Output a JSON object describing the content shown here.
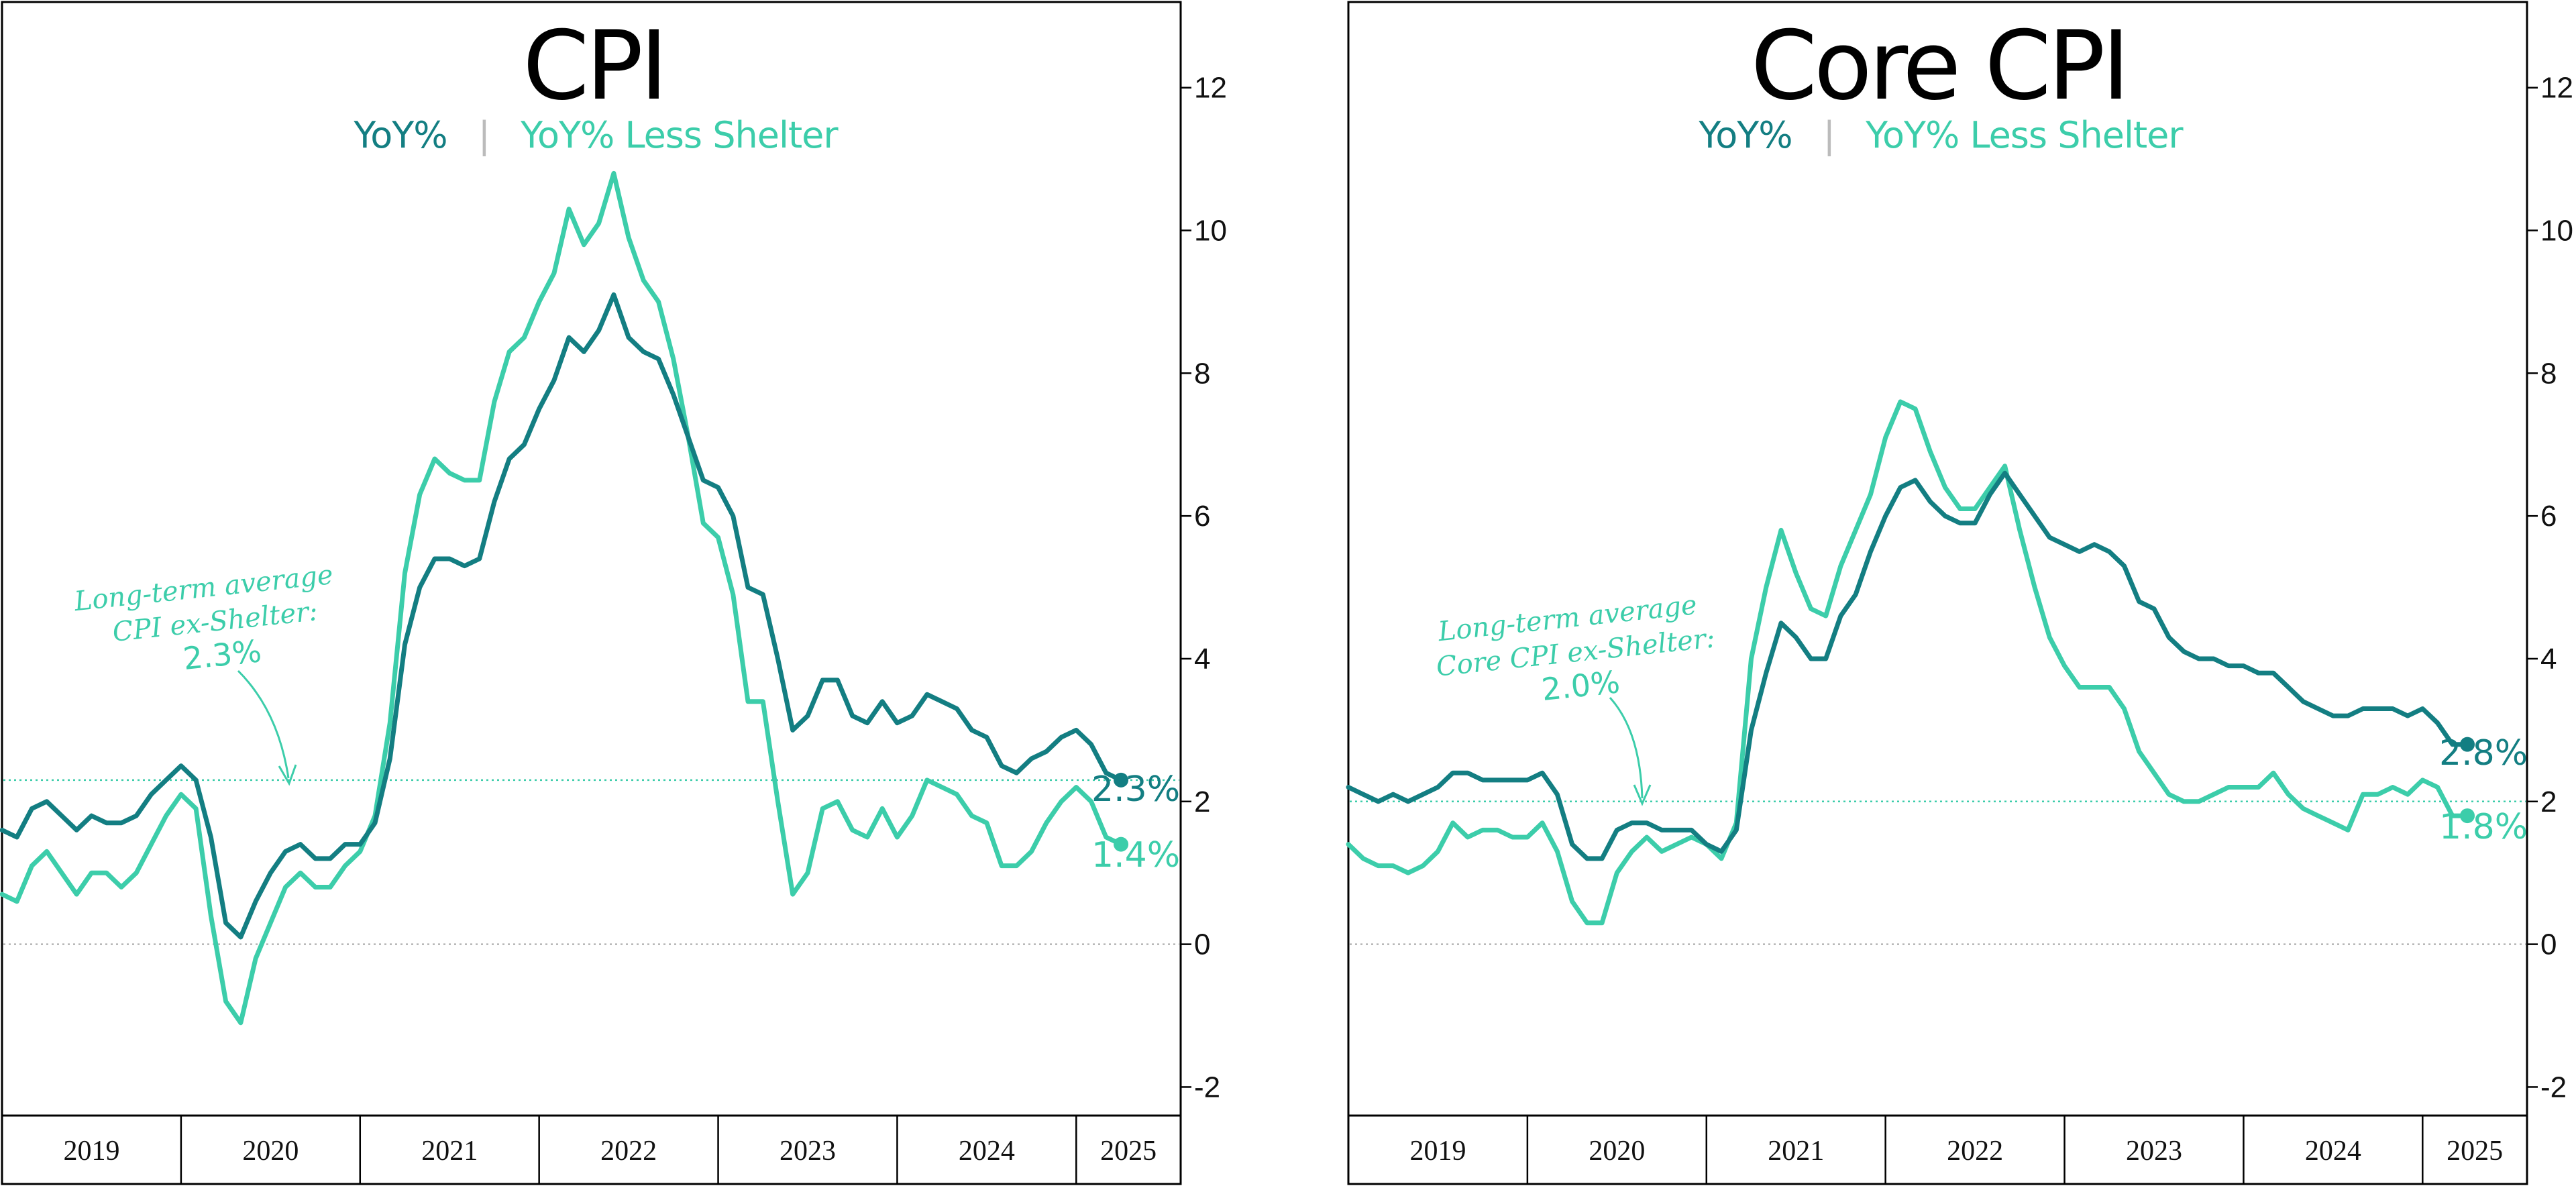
{
  "colors": {
    "yoy": "#137e82",
    "less_shelter": "#3ccdaa",
    "separator": "#bbbbbb"
  },
  "chart_data": [
    {
      "type": "line",
      "title": "CPI",
      "subtitle": {
        "series1": "YoY%",
        "separator": "|",
        "series2": "YoY% Less Shelter"
      },
      "x_axis": {
        "labels": [
          "2019",
          "2020",
          "2021",
          "2022",
          "2023",
          "2024",
          "2025"
        ],
        "range": [
          "2019-01",
          "2025-08"
        ]
      },
      "y_axis": {
        "side": "right",
        "ylim": [
          -2.4,
          13.2
        ],
        "ticks": [
          "-2",
          "0",
          "2",
          "4",
          "6",
          "8",
          "10",
          "12"
        ]
      },
      "reference_lines": [
        {
          "y": 0,
          "style": "dotted grey"
        },
        {
          "y": 2.3,
          "style": "dotted teal"
        }
      ],
      "annotation": {
        "lines": [
          "Long-term average",
          "CPI ex-Shelter:"
        ],
        "value": "2.3%"
      },
      "end_labels": {
        "series1": "2.3%",
        "series2": "1.4%"
      },
      "series": [
        {
          "name": "YoY%",
          "start": "2019-01",
          "values": [
            1.6,
            1.5,
            1.9,
            2.0,
            1.8,
            1.6,
            1.8,
            1.7,
            1.7,
            1.8,
            2.1,
            2.3,
            2.5,
            2.3,
            1.5,
            0.3,
            0.1,
            0.6,
            1.0,
            1.3,
            1.4,
            1.2,
            1.2,
            1.4,
            1.4,
            1.7,
            2.6,
            4.2,
            5.0,
            5.4,
            5.4,
            5.3,
            5.4,
            6.2,
            6.8,
            7.0,
            7.5,
            7.9,
            8.5,
            8.3,
            8.6,
            9.1,
            8.5,
            8.3,
            8.2,
            7.7,
            7.1,
            6.5,
            6.4,
            6.0,
            5.0,
            4.9,
            4.0,
            3.0,
            3.2,
            3.7,
            3.7,
            3.2,
            3.1,
            3.4,
            3.1,
            3.2,
            3.5,
            3.4,
            3.3,
            3.0,
            2.9,
            2.5,
            2.4,
            2.6,
            2.7,
            2.9,
            3.0,
            2.8,
            2.4,
            2.3
          ]
        },
        {
          "name": "YoY% Less Shelter",
          "start": "2019-01",
          "values": [
            0.7,
            0.6,
            1.1,
            1.3,
            1.0,
            0.7,
            1.0,
            1.0,
            0.8,
            1.0,
            1.4,
            1.8,
            2.1,
            1.9,
            0.4,
            -0.8,
            -1.1,
            -0.2,
            0.3,
            0.8,
            1.0,
            0.8,
            0.8,
            1.1,
            1.3,
            1.8,
            3.1,
            5.2,
            6.3,
            6.8,
            6.6,
            6.5,
            6.5,
            7.6,
            8.3,
            8.5,
            9.0,
            9.4,
            10.3,
            9.8,
            10.1,
            10.8,
            9.9,
            9.3,
            9.0,
            8.2,
            7.1,
            5.9,
            5.7,
            4.9,
            3.4,
            3.4,
            2.0,
            0.7,
            1.0,
            1.9,
            2.0,
            1.6,
            1.5,
            1.9,
            1.5,
            1.8,
            2.3,
            2.2,
            2.1,
            1.8,
            1.7,
            1.1,
            1.1,
            1.3,
            1.7,
            2.0,
            2.2,
            2.0,
            1.5,
            1.4
          ]
        }
      ]
    },
    {
      "type": "line",
      "title": "Core CPI",
      "subtitle": {
        "series1": "YoY%",
        "separator": "|",
        "series2": "YoY% Less Shelter"
      },
      "x_axis": {
        "labels": [
          "2019",
          "2020",
          "2021",
          "2022",
          "2023",
          "2024",
          "2025"
        ],
        "range": [
          "2019-01",
          "2025-08"
        ]
      },
      "y_axis": {
        "side": "right",
        "ylim": [
          -2.4,
          13.2
        ],
        "ticks": [
          "-2",
          "0",
          "2",
          "4",
          "6",
          "8",
          "10",
          "12"
        ]
      },
      "reference_lines": [
        {
          "y": 0,
          "style": "dotted grey"
        },
        {
          "y": 2.0,
          "style": "dotted teal"
        }
      ],
      "annotation": {
        "lines": [
          "Long-term average",
          "Core CPI ex-Shelter:"
        ],
        "value": "2.0%"
      },
      "end_labels": {
        "series1": "2.8%",
        "series2": "1.8%"
      },
      "series": [
        {
          "name": "YoY%",
          "start": "2019-01",
          "values": [
            2.2,
            2.1,
            2.0,
            2.1,
            2.0,
            2.1,
            2.2,
            2.4,
            2.4,
            2.3,
            2.3,
            2.3,
            2.3,
            2.4,
            2.1,
            1.4,
            1.2,
            1.2,
            1.6,
            1.7,
            1.7,
            1.6,
            1.6,
            1.6,
            1.4,
            1.3,
            1.6,
            3.0,
            3.8,
            4.5,
            4.3,
            4.0,
            4.0,
            4.6,
            4.9,
            5.5,
            6.0,
            6.4,
            6.5,
            6.2,
            6.0,
            5.9,
            5.9,
            6.3,
            6.6,
            6.3,
            6.0,
            5.7,
            5.6,
            5.5,
            5.6,
            5.5,
            5.3,
            4.8,
            4.7,
            4.3,
            4.1,
            4.0,
            4.0,
            3.9,
            3.9,
            3.8,
            3.8,
            3.6,
            3.4,
            3.3,
            3.2,
            3.2,
            3.3,
            3.3,
            3.3,
            3.2,
            3.3,
            3.1,
            2.8,
            2.8
          ]
        },
        {
          "name": "YoY% Less Shelter",
          "start": "2019-01",
          "values": [
            1.4,
            1.2,
            1.1,
            1.1,
            1.0,
            1.1,
            1.3,
            1.7,
            1.5,
            1.6,
            1.6,
            1.5,
            1.5,
            1.7,
            1.3,
            0.6,
            0.3,
            0.3,
            1.0,
            1.3,
            1.5,
            1.3,
            1.4,
            1.5,
            1.4,
            1.2,
            1.7,
            4.0,
            5.0,
            5.8,
            5.2,
            4.7,
            4.6,
            5.3,
            5.8,
            6.3,
            7.1,
            7.6,
            7.5,
            6.9,
            6.4,
            6.1,
            6.1,
            6.4,
            6.7,
            5.8,
            5.0,
            4.3,
            3.9,
            3.6,
            3.6,
            3.6,
            3.3,
            2.7,
            2.4,
            2.1,
            2.0,
            2.0,
            2.1,
            2.2,
            2.2,
            2.2,
            2.4,
            2.1,
            1.9,
            1.8,
            1.7,
            1.6,
            2.1,
            2.1,
            2.2,
            2.1,
            2.3,
            2.2,
            1.8,
            1.8
          ]
        }
      ]
    }
  ]
}
